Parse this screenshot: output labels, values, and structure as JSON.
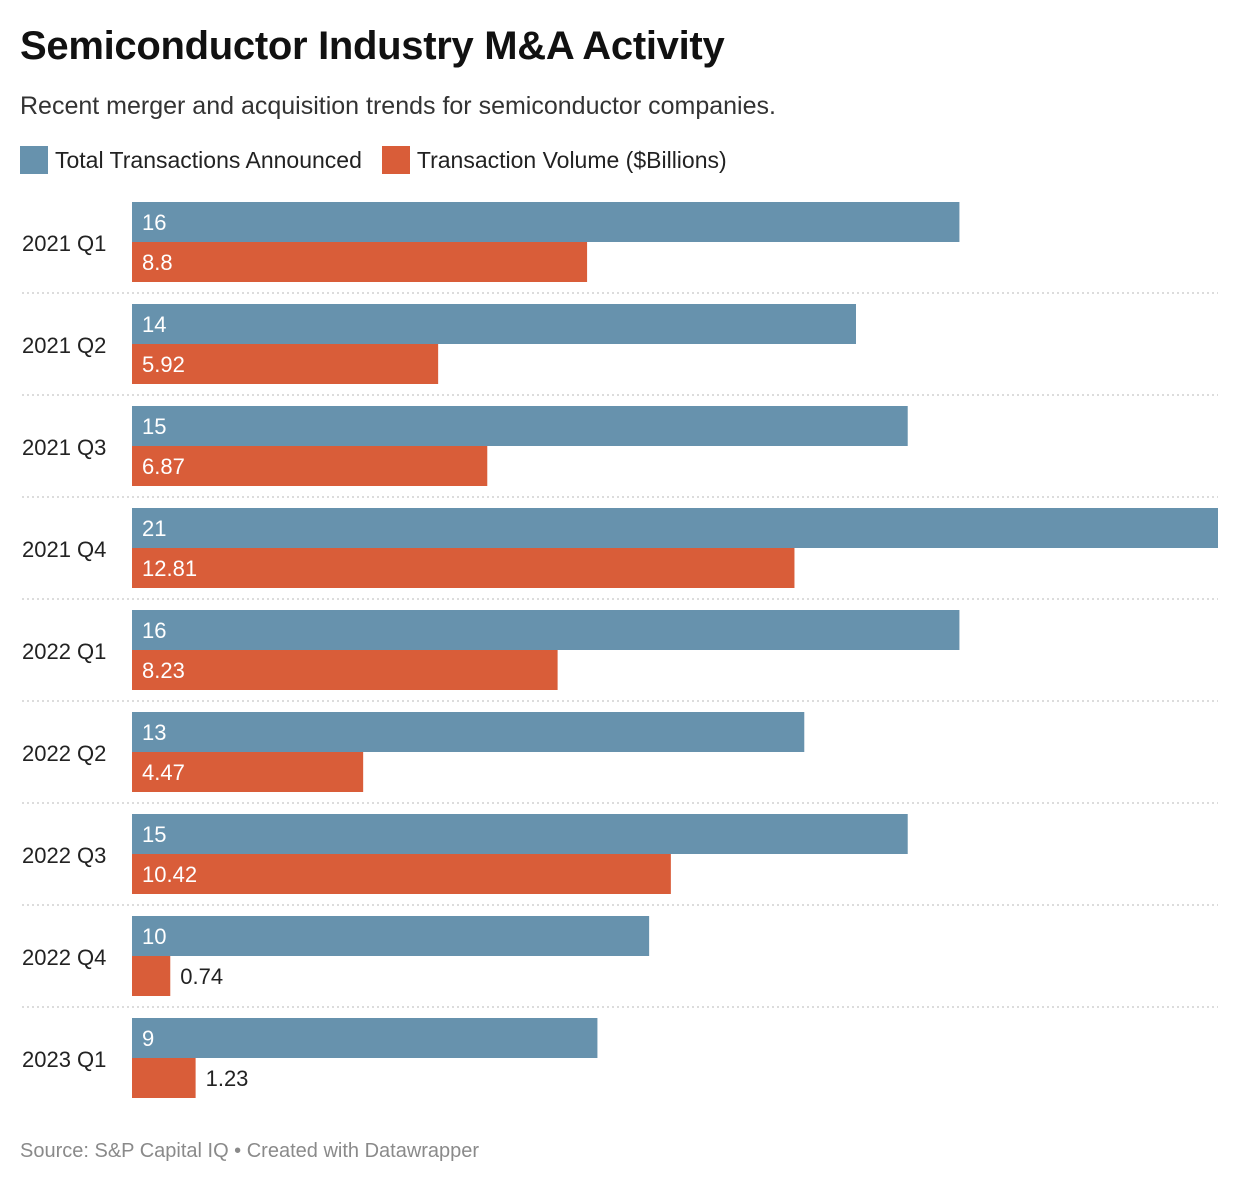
{
  "header": {
    "title": "Semiconductor Industry M&A Activity",
    "subtitle": "Recent merger and acquisition trends for semiconductor companies."
  },
  "legend": [
    {
      "label": "Total Transactions Announced",
      "color": "#6792ad"
    },
    {
      "label": "Transaction Volume ($Billions)",
      "color": "#d95d39"
    }
  ],
  "chart_data": {
    "type": "bar",
    "orientation": "horizontal",
    "title": "Semiconductor Industry M&A Activity",
    "categories": [
      "2021 Q1",
      "2021 Q2",
      "2021 Q3",
      "2021 Q4",
      "2022 Q1",
      "2022 Q2",
      "2022 Q3",
      "2022 Q4",
      "2023 Q1"
    ],
    "series": [
      {
        "name": "Total Transactions Announced",
        "color": "#6792ad",
        "values": [
          16,
          14,
          15,
          21,
          16,
          13,
          15,
          10,
          9
        ],
        "labels": [
          "16",
          "14",
          "15",
          "21",
          "16",
          "13",
          "15",
          "10",
          "9"
        ]
      },
      {
        "name": "Transaction Volume ($Billions)",
        "color": "#d95d39",
        "values": [
          8.8,
          5.92,
          6.87,
          12.81,
          8.23,
          4.47,
          10.42,
          0.74,
          1.23
        ],
        "labels": [
          "8.8",
          "5.92",
          "6.87",
          "12.81",
          "8.23",
          "4.47",
          "10.42",
          "0.74",
          "1.23"
        ]
      }
    ],
    "xlim": [
      0,
      21
    ],
    "grid": false,
    "legend_position": "top-left"
  },
  "footer": {
    "source": "Source: S&P Capital IQ • Created with Datawrapper"
  }
}
